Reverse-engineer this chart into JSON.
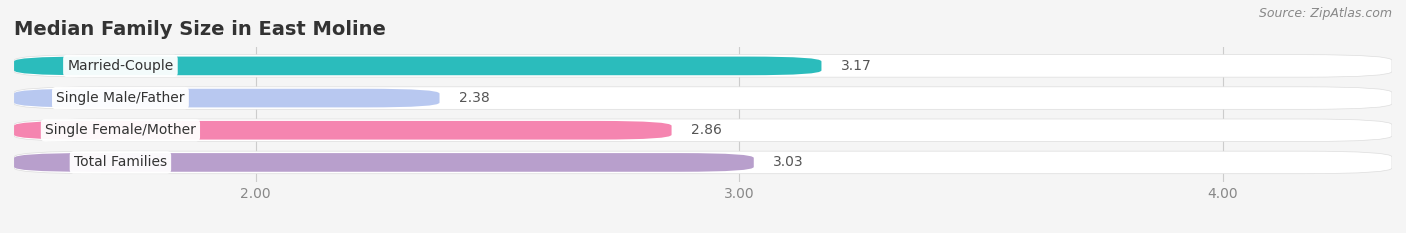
{
  "title": "Median Family Size in East Moline",
  "source": "Source: ZipAtlas.com",
  "categories": [
    "Married-Couple",
    "Single Male/Father",
    "Single Female/Mother",
    "Total Families"
  ],
  "values": [
    3.17,
    2.38,
    2.86,
    3.03
  ],
  "bar_colors": [
    "#2bbcbc",
    "#b8c8f0",
    "#f585b0",
    "#b89fcc"
  ],
  "background_color": "#f5f5f5",
  "xmin": 1.5,
  "xmax": 4.35,
  "xticks": [
    2.0,
    3.0,
    4.0
  ],
  "title_fontsize": 14,
  "source_fontsize": 9,
  "label_fontsize": 10,
  "value_fontsize": 10,
  "tick_fontsize": 10
}
